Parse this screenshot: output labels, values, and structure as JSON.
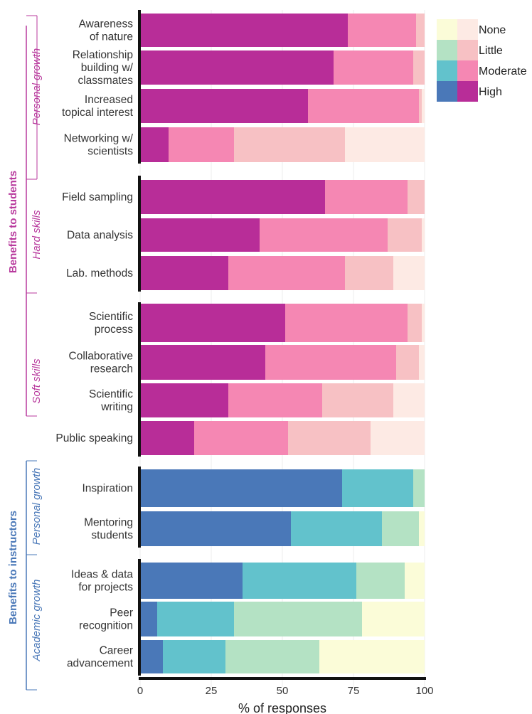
{
  "chart_data": {
    "type": "bar",
    "orientation": "horizontal",
    "stacked": true,
    "xlabel": "% of responses",
    "xlim": [
      0,
      100
    ],
    "xticks": [
      0,
      25,
      50,
      75,
      100
    ],
    "grid": true,
    "legend": {
      "position": "top-right",
      "entries": [
        "None",
        "Little",
        "Moderate",
        "High"
      ]
    },
    "segment_order": [
      "High",
      "Moderate",
      "Little",
      "None"
    ],
    "colors": {
      "students": {
        "High": "#b82d98",
        "Moderate": "#f587b3",
        "Little": "#f7c1c4",
        "None": "#fdeae4"
      },
      "instructors": {
        "High": "#4a78b8",
        "Moderate": "#62c2cc",
        "Little": "#b4e2c4",
        "None": "#fbfcd8"
      }
    },
    "group_colors": {
      "students": "#b83a9d",
      "instructors": "#4a78b8"
    },
    "groups": [
      {
        "label": "Benefits to students",
        "palette": "students",
        "subgroups": [
          {
            "label": "Personal growth",
            "categories": [
              "Awareness\nof nature",
              "Relationship\nbuilding w/\nclassmates",
              "Increased\ntopical interest",
              "Networking w/\nscientists"
            ]
          },
          {
            "label": "Hard skills",
            "categories": [
              "Field sampling",
              "Data analysis",
              "Lab. methods"
            ]
          },
          {
            "label": "Soft skills",
            "categories": [
              "Scientific\nprocess",
              "Collaborative\nresearch",
              "Scientific\nwriting",
              "Public speaking"
            ]
          }
        ]
      },
      {
        "label": "Benefits to instructors",
        "palette": "instructors",
        "subgroups": [
          {
            "label": "Personal growth",
            "categories": [
              "Inspiration",
              "Mentoring\nstudents"
            ]
          },
          {
            "label": "Academic growth",
            "categories": [
              "Ideas & data\nfor projects",
              "Peer\nrecognition",
              "Career\nadvancement"
            ]
          }
        ]
      }
    ],
    "series": [
      {
        "name": "High",
        "values": [
          73,
          68,
          59,
          10,
          65,
          42,
          31,
          51,
          44,
          31,
          19,
          71,
          53,
          36,
          6,
          8
        ]
      },
      {
        "name": "Moderate",
        "values": [
          24,
          28,
          39,
          23,
          29,
          45,
          41,
          43,
          46,
          33,
          33,
          25,
          32,
          40,
          27,
          22
        ]
      },
      {
        "name": "Little",
        "values": [
          3,
          4,
          1,
          39,
          6,
          12,
          17,
          5,
          8,
          25,
          29,
          4,
          13,
          17,
          45,
          33
        ]
      },
      {
        "name": "None",
        "values": [
          0,
          0,
          1,
          28,
          0,
          1,
          11,
          1,
          2,
          11,
          19,
          0,
          2,
          7,
          22,
          37
        ]
      }
    ]
  }
}
